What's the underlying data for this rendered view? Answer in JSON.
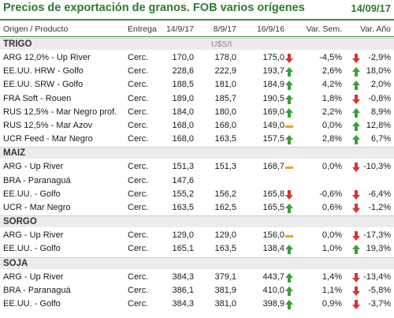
{
  "title": "Precios de exportación de granos. FOB varios orígenes",
  "date": "14/09/17",
  "headers": [
    "Origen / Producto",
    "Entrega",
    "14/9/17",
    "8/9/17",
    "16/9/16",
    "Var. Sem.",
    "Var. Año"
  ],
  "unit": "U$S/t",
  "colors": {
    "accent": "#2f7a2f",
    "up": "#3aa03a",
    "down": "#d9352c",
    "flat": "#f0a21b"
  },
  "sections": [
    {
      "name": "TRIGO",
      "rows": [
        {
          "name": "ARG 12,0% - Up River",
          "entrega": "Cerc.",
          "v1": "170,0",
          "v2": "178,0",
          "v3": "175,0",
          "sem_icon": "arrow-down",
          "sem": "-4,5%",
          "ano_icon": "arrow-down",
          "ano": "-2,9%"
        },
        {
          "name": "EE.UU. HRW - Golfo",
          "entrega": "Cerc.",
          "v1": "228,6",
          "v2": "222,9",
          "v3": "193,7",
          "sem_icon": "arrow-up",
          "sem": "2,6%",
          "ano_icon": "arrow-up",
          "ano": "18,0%"
        },
        {
          "name": "EE.UU. SRW - Golfo",
          "entrega": "Cerc.",
          "v1": "188,5",
          "v2": "181,0",
          "v3": "184,9",
          "sem_icon": "arrow-up",
          "sem": "4,2%",
          "ano_icon": "arrow-up",
          "ano": "2,0%"
        },
        {
          "name": "FRA Soft - Rouen",
          "entrega": "Cerc.",
          "v1": "189,0",
          "v2": "185,7",
          "v3": "190,5",
          "sem_icon": "arrow-up",
          "sem": "1,8%",
          "ano_icon": "arrow-down",
          "ano": "-0,8%"
        },
        {
          "name": "RUS 12,5% - Mar Negro prof.",
          "entrega": "Cerc.",
          "v1": "184,0",
          "v2": "180,0",
          "v3": "169,0",
          "sem_icon": "arrow-up",
          "sem": "2,2%",
          "ano_icon": "arrow-up",
          "ano": "8,9%"
        },
        {
          "name": "RUS 12,5% - Mar Azov",
          "entrega": "Cerc.",
          "v1": "168,0",
          "v2": "168,0",
          "v3": "149,0",
          "sem_icon": "flat",
          "sem": "0,0%",
          "ano_icon": "arrow-up",
          "ano": "12,8%"
        },
        {
          "name": "UCR Feed - Mar Negro",
          "entrega": "Cerc.",
          "v1": "168,0",
          "v2": "163,5",
          "v3": "157,5",
          "sem_icon": "arrow-up",
          "sem": "2,8%",
          "ano_icon": "arrow-up",
          "ano": "6,7%"
        }
      ]
    },
    {
      "name": "MAIZ",
      "rows": [
        {
          "name": "ARG - Up River",
          "entrega": "Cerc.",
          "v1": "151,3",
          "v2": "151,3",
          "v3": "168,7",
          "sem_icon": "flat",
          "sem": "0,0%",
          "ano_icon": "arrow-down",
          "ano": "-10,3%"
        },
        {
          "name": "BRA - Paranaguá",
          "entrega": "Cerc.",
          "v1": "147,6",
          "v2": "",
          "v3": "",
          "sem_icon": "",
          "sem": "",
          "ano_icon": "",
          "ano": ""
        },
        {
          "name": "EE.UU. - Golfo",
          "entrega": "Cerc.",
          "v1": "155,2",
          "v2": "156,2",
          "v3": "165,8",
          "sem_icon": "arrow-down",
          "sem": "-0,6%",
          "ano_icon": "arrow-down",
          "ano": "-6,4%"
        },
        {
          "name": "UCR - Mar Negro",
          "entrega": "Cerc.",
          "v1": "163,5",
          "v2": "162,5",
          "v3": "165,5",
          "sem_icon": "arrow-up",
          "sem": "0,6%",
          "ano_icon": "arrow-down",
          "ano": "-1,2%"
        }
      ]
    },
    {
      "name": "SORGO",
      "rows": [
        {
          "name": "ARG - Up River",
          "entrega": "Cerc.",
          "v1": "129,0",
          "v2": "129,0",
          "v3": "156,0",
          "sem_icon": "flat",
          "sem": "0,0%",
          "ano_icon": "arrow-down",
          "ano": "-17,3%"
        },
        {
          "name": "EE.UU. - Golfo",
          "entrega": "Cerc.",
          "v1": "165,1",
          "v2": "163,5",
          "v3": "138,4",
          "sem_icon": "arrow-up",
          "sem": "1,0%",
          "ano_icon": "arrow-up",
          "ano": "19,3%"
        }
      ]
    },
    {
      "name": "SOJA",
      "rows": [
        {
          "name": "ARG - Up River",
          "entrega": "Cerc.",
          "v1": "384,3",
          "v2": "379,1",
          "v3": "443,7",
          "sem_icon": "arrow-up",
          "sem": "1,4%",
          "ano_icon": "arrow-down",
          "ano": "-13,4%"
        },
        {
          "name": "BRA - Paranaguá",
          "entrega": "Cerc.",
          "v1": "386,1",
          "v2": "381,9",
          "v3": "410,0",
          "sem_icon": "arrow-up",
          "sem": "1,1%",
          "ano_icon": "arrow-down",
          "ano": "-5,8%"
        },
        {
          "name": "EE.UU. - Golfo",
          "entrega": "Cerc.",
          "v1": "384,3",
          "v2": "381,0",
          "v3": "398,9",
          "sem_icon": "arrow-up",
          "sem": "0,9%",
          "ano_icon": "arrow-down",
          "ano": "-3,7%"
        }
      ]
    }
  ]
}
